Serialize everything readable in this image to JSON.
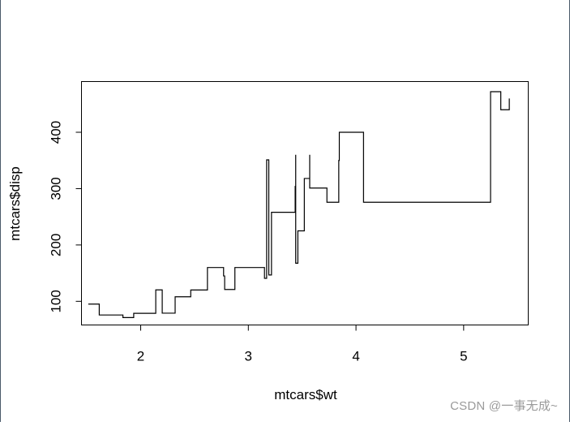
{
  "watermark": "CSDN @一事无成~",
  "chart_data": {
    "type": "step",
    "title": "",
    "xlabel": "mtcars$wt",
    "ylabel": "mtcars$disp",
    "xlim": [
      1.45,
      5.6
    ],
    "ylim": [
      58,
      490
    ],
    "xticks": [
      2,
      3,
      4,
      5
    ],
    "yticks": [
      100,
      200,
      300,
      400
    ],
    "grid": false,
    "series": [
      {
        "x": [
          1.513,
          1.615,
          1.835,
          1.935,
          2.14,
          2.2,
          2.32,
          2.465,
          2.62,
          2.77,
          2.78,
          2.875,
          3.15,
          3.17,
          3.19,
          3.215,
          3.435,
          3.44,
          3.44,
          3.44,
          3.46,
          3.52,
          3.57,
          3.57,
          3.73,
          3.78,
          3.84,
          3.845,
          4.07,
          5.25,
          5.345,
          5.424
        ],
        "y": [
          95.1,
          75.7,
          71.1,
          78.7,
          120.3,
          79,
          108,
          120.1,
          160,
          145,
          121,
          160,
          140.8,
          351,
          146.7,
          258,
          304,
          167.6,
          360,
          167.6,
          225,
          318,
          360,
          301,
          275.8,
          275.8,
          350,
          400,
          275.8,
          472,
          440,
          460
        ]
      }
    ]
  }
}
